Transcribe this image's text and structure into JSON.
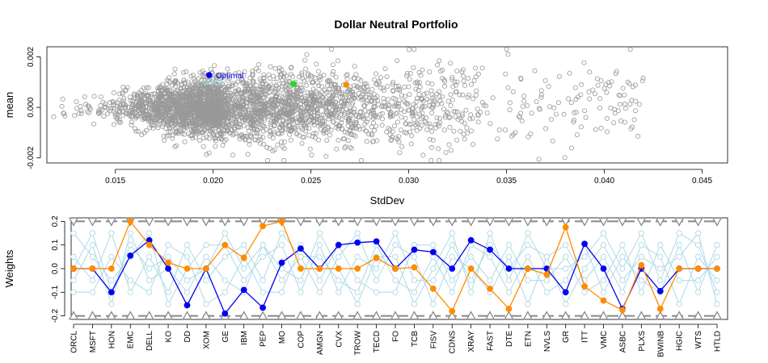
{
  "colors": {
    "cloud": "#999999",
    "light_blue": "#add8e6",
    "optimal": "#0000ee",
    "orange": "#ff8c00",
    "green": "#22dd22",
    "bound": "#888888"
  },
  "chart_data": [
    {
      "type": "scatter",
      "title": "Dollar Neutral Portfolio",
      "xlabel": "StdDev",
      "ylabel": "mean",
      "xlim": [
        0.0115,
        0.0463
      ],
      "ylim": [
        -0.0022,
        0.0024
      ],
      "x_ticks": [
        0.015,
        0.02,
        0.025,
        0.03,
        0.035,
        0.04,
        0.045
      ],
      "x_tick_labels": [
        "0.015",
        "0.020",
        "0.025",
        "0.030",
        "0.035",
        "0.040",
        "0.045"
      ],
      "y_ticks": [
        -0.002,
        0,
        0.002
      ],
      "y_tick_labels": [
        "-0.002",
        "0.000",
        "0.002"
      ],
      "grid": false,
      "cloud_density": [
        {
          "x": 0.015,
          "mean": 0.0,
          "sd": 0.00035
        },
        {
          "x": 0.018,
          "mean": 0.0,
          "sd": 0.0005
        },
        {
          "x": 0.021,
          "mean": 0.0,
          "sd": 0.0006
        },
        {
          "x": 0.024,
          "mean": 0.0,
          "sd": 0.0007
        },
        {
          "x": 0.027,
          "mean": 0.0,
          "sd": 0.00075
        },
        {
          "x": 0.03,
          "mean": 0.0,
          "sd": 0.0008
        },
        {
          "x": 0.034,
          "mean": 0.0,
          "sd": 0.00085
        },
        {
          "x": 0.04,
          "mean": 0.0,
          "sd": 0.0009
        }
      ],
      "highlight_points": [
        {
          "x": 0.0198,
          "y": 0.00128,
          "color": "optimal",
          "label": "Optimal"
        },
        {
          "x": 0.0241,
          "y": 0.00093,
          "color": "green"
        },
        {
          "x": 0.0268,
          "y": 0.0009,
          "color": "orange"
        }
      ],
      "light_blue_points": [
        {
          "x": 0.0196,
          "y": 0.00098
        },
        {
          "x": 0.0199,
          "y": 0.00105
        },
        {
          "x": 0.0202,
          "y": 0.00095
        },
        {
          "x": 0.0205,
          "y": 0.00108
        },
        {
          "x": 0.0201,
          "y": 0.00112
        },
        {
          "x": 0.0197,
          "y": 0.00102
        },
        {
          "x": 0.0204,
          "y": 0.00099
        }
      ]
    },
    {
      "type": "line",
      "ylabel": "Weights",
      "ylim": [
        -0.215,
        0.215
      ],
      "y_ticks": [
        -0.2,
        -0.1,
        0,
        0.1,
        0.2
      ],
      "y_tick_labels": [
        "-0.2",
        "-0.1",
        "0.0",
        "0.1",
        "0.2"
      ],
      "categories": [
        "ORCL",
        "MSFT",
        "HON",
        "EMC",
        "DELL",
        "KO",
        "DD",
        "XOM",
        "GE",
        "IBM",
        "PEP",
        "MO",
        "COP",
        "AMGN",
        "CVX",
        "TROW",
        "TECD",
        "FO",
        "TCB",
        "FISV",
        "CDNS",
        "XRAY",
        "FAST",
        "DTE",
        "ETN",
        "NVLS",
        "GR",
        "ITT",
        "VMC",
        "ASBC",
        "PLXS",
        "BWINB",
        "HGIC",
        "WTS",
        "HTLD"
      ],
      "upper_bound": 0.2,
      "lower_bound": -0.2,
      "series": [
        {
          "color": "optimal",
          "values": [
            0.0,
            0.0,
            -0.1,
            0.055,
            0.12,
            0.0,
            -0.155,
            0.0,
            -0.19,
            -0.09,
            -0.165,
            0.025,
            0.085,
            0.0,
            0.1,
            0.11,
            0.115,
            0.0,
            0.08,
            0.07,
            0.0,
            0.12,
            0.08,
            0.0,
            0.0,
            0.0,
            -0.1,
            0.105,
            0.0,
            -0.17,
            0.0,
            -0.095,
            0.0,
            0.0,
            0.0
          ]
        },
        {
          "color": "orange",
          "values": [
            0.0,
            0.0,
            0.0,
            0.2,
            0.1,
            0.025,
            0.0,
            0.0,
            0.1,
            0.045,
            0.18,
            0.2,
            0.0,
            0.0,
            0.0,
            0.0,
            0.045,
            0.0,
            0.005,
            -0.085,
            -0.18,
            0.0,
            -0.085,
            -0.17,
            0.0,
            -0.025,
            0.175,
            -0.075,
            -0.135,
            -0.175,
            0.015,
            -0.17,
            0.0,
            0.0,
            0.0
          ]
        },
        {
          "color": "light_blue",
          "values": [
            0.05,
            -0.05,
            0.15,
            -0.1,
            0.05,
            -0.1,
            0.1,
            -0.05,
            0.05,
            0.1,
            -0.05,
            0.15,
            0.05,
            -0.1,
            0.05,
            0.15,
            -0.05,
            0.1,
            0.05,
            -0.15,
            0.05,
            0.0,
            -0.1,
            0.05,
            -0.15,
            0.05,
            0.1,
            -0.05,
            0.05,
            -0.1,
            0.1,
            0.05,
            -0.15,
            0.05,
            -0.05
          ]
        },
        {
          "color": "light_blue",
          "values": [
            -0.05,
            0.1,
            -0.15,
            0.15,
            -0.05,
            0.0,
            -0.1,
            0.05,
            -0.05,
            -0.1,
            0.1,
            -0.05,
            0.05,
            0.05,
            -0.05,
            -0.1,
            0.1,
            -0.05,
            -0.1,
            0.05,
            -0.1,
            0.1,
            0.05,
            -0.1,
            0.05,
            -0.1,
            -0.05,
            0.1,
            -0.1,
            0.05,
            -0.05,
            -0.1,
            0.1,
            -0.1,
            0.1
          ]
        },
        {
          "color": "light_blue",
          "values": [
            0.15,
            0.05,
            -0.05,
            0.05,
            0.15,
            -0.15,
            0.0,
            0.1,
            0.1,
            -0.05,
            0.05,
            0.1,
            -0.1,
            0.1,
            -0.1,
            0.05,
            0.0,
            0.15,
            -0.05,
            -0.05,
            0.1,
            -0.05,
            0.1,
            0.0,
            0.1,
            0.05,
            -0.15,
            0.0,
            0.1,
            -0.05,
            0.05,
            0.0,
            0.05,
            0.15,
            -0.15
          ]
        },
        {
          "color": "light_blue",
          "values": [
            -0.1,
            -0.1,
            0.05,
            -0.05,
            -0.1,
            0.1,
            0.05,
            -0.15,
            -0.1,
            0.05,
            -0.1,
            -0.1,
            0.1,
            -0.05,
            0.1,
            -0.05,
            -0.1,
            -0.1,
            0.1,
            0.1,
            -0.05,
            0.05,
            -0.05,
            0.1,
            -0.05,
            -0.05,
            0.05,
            -0.1,
            -0.05,
            0.1,
            -0.1,
            0.1,
            -0.05,
            -0.05,
            0.05
          ]
        },
        {
          "color": "light_blue",
          "values": [
            0.0,
            0.15,
            -0.1,
            0.1,
            0.0,
            0.05,
            -0.05,
            0.0,
            0.15,
            0.0,
            0.1,
            0.0,
            -0.05,
            0.15,
            0.0,
            -0.15,
            0.05,
            0.05,
            -0.15,
            0.0,
            0.15,
            -0.1,
            0.15,
            -0.05,
            0.15,
            0.0,
            0.0,
            0.05,
            0.15,
            0.0,
            0.15,
            -0.05,
            0.15,
            0.1,
            -0.1
          ]
        }
      ]
    }
  ]
}
